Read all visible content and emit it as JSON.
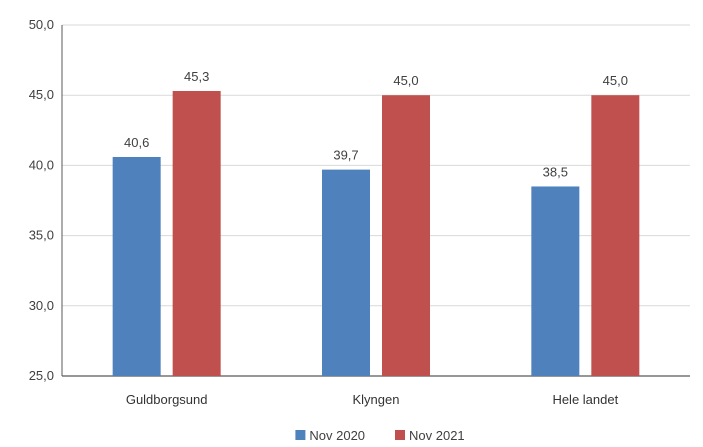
{
  "chart_data": {
    "type": "bar",
    "categories": [
      "Guldborgsund",
      "Klyngen",
      "Hele landet"
    ],
    "series": [
      {
        "name": "Nov 2020",
        "values": [
          40.6,
          39.7,
          38.5
        ],
        "labels": [
          "40,6",
          "39,7",
          "38,5"
        ],
        "color": "#4f81bd"
      },
      {
        "name": "Nov 2021",
        "values": [
          45.3,
          45.0,
          45.0
        ],
        "labels": [
          "45,3",
          "45,0",
          "45,0"
        ],
        "color": "#c0504d"
      }
    ],
    "ylim": [
      25,
      50
    ],
    "yticks": [
      25,
      30,
      35,
      40,
      45,
      50
    ],
    "ytick_labels": [
      "25,0",
      "30,0",
      "35,0",
      "40,0",
      "45,0",
      "50,0"
    ],
    "grid": true,
    "legend_position": "bottom",
    "title": "",
    "xlabel": "",
    "ylabel": ""
  }
}
